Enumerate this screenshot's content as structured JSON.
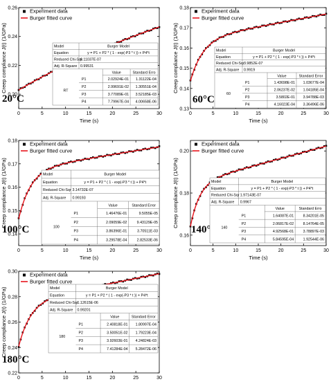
{
  "chart_data": [
    {
      "type": "scatter",
      "temperature": "20°C",
      "xlabel": "Time (s)",
      "ylabel": "Creep compliance J(t) (1/GPa)",
      "xlim": [
        0,
        30
      ],
      "ylim": [
        0.19,
        0.26
      ],
      "xticks": [
        "0",
        "5",
        "10",
        "15",
        "20",
        "25",
        "30"
      ],
      "yticks": [
        "0.20",
        "0.22",
        "0.24",
        "0.26"
      ],
      "legend": [
        "Experiment data",
        "Burger fitted curve"
      ],
      "fit": {
        "p1": 0.202924,
        "p2": 0.0299691,
        "p3": 0.0377089,
        "p4": 0.000779967
      },
      "table": {
        "model_label": "Model",
        "model_value": "Burger Model",
        "equation_label": "Equation",
        "equation": "y = P1 + P2 * ( 1 - exp(-P3 * t )) + P4*t",
        "chisqr_label": "Reduced Chi-Sqr",
        "chisqr": "6.11037E-07",
        "rsq_label": "Adj. R-Square",
        "rsq": "0.99531",
        "value_header": "Value",
        "error_header": "Standard Erro",
        "group": "RT",
        "params": [
          {
            "name": "P1",
            "value": "2.02924E-01",
            "error": "1.31122E-04"
          },
          {
            "name": "P2",
            "value": "2.99691E-02",
            "error": "1.30551E-04"
          },
          {
            "name": "P3",
            "value": "3.77089E-01",
            "error": "3.52185E-03"
          },
          {
            "name": "P4",
            "value": "7.79967E-04",
            "error": "4.00658E-06"
          }
        ]
      }
    },
    {
      "type": "scatter",
      "temperature": "60°C",
      "xlabel": "Time (s)",
      "ylabel": "Creep compliance J(t) (1/GPa)",
      "xlim": [
        0,
        30
      ],
      "ylim": [
        0.13,
        0.18
      ],
      "xticks": [
        "0",
        "5",
        "10",
        "15",
        "20",
        "25",
        "30"
      ],
      "yticks": [
        "0.13",
        "0.14",
        "0.15",
        "0.16",
        "0.17",
        "0.18"
      ],
      "legend": [
        "Experiment data",
        "Burger fitted curve"
      ],
      "fit": {
        "p1": 0.143698,
        "p2": 0.0206237,
        "p3": 0.35802,
        "p4": 0.000416023
      },
      "table": {
        "model_label": "Model",
        "model_value": "Burger Model",
        "equation_label": "Equation",
        "equation": "y = P1 + P2 * ( 1 - exp(-P3 * t )) + P4*t",
        "chisqr_label": "Reduced Chi-Sqr",
        "chisqr": "3.9852E-07",
        "rsq_label": "Adj. R-Square",
        "rsq": "0.9919",
        "value_header": "Value",
        "error_header": "Standard Error",
        "group": "60",
        "params": [
          {
            "name": "P1",
            "value": "1.43698E-01",
            "error": "1.03677E-04"
          },
          {
            "name": "P2",
            "value": "2.06237E-02",
            "error": "1.04185E-04"
          },
          {
            "name": "P3",
            "value": "3.5802E-01",
            "error": "3.94788E-03"
          },
          {
            "name": "P4",
            "value": "4.16023E-04",
            "error": "3.36496E-06"
          }
        ]
      }
    },
    {
      "type": "scatter",
      "temperature": "100°C",
      "xlabel": "Time (s)",
      "ylabel": "Creep compliance J(t) (1/GPa)",
      "xlim": [
        0,
        30
      ],
      "ylim": [
        0.135,
        0.18
      ],
      "xticks": [
        "0",
        "5",
        "10",
        "15",
        "20",
        "25",
        "30"
      ],
      "yticks": [
        "0.14",
        "0.15",
        "0.16",
        "0.17",
        "0.18"
      ],
      "legend": [
        "Experiment data",
        "Burger fitted curve"
      ],
      "fit": {
        "p1": 0.146476,
        "p2": 0.0209059,
        "p3": 0.386396,
        "p4": 0.000329578
      },
      "table": {
        "model_label": "Model",
        "model_value": "Burger Model",
        "equation_label": "Equation",
        "equation": "y = P1 + P2 * ( 1 - exp(-P3 * t )) + P4*t",
        "chisqr_label": "Reduced Chi-Sqr",
        "chisqr": "3.14732E-07",
        "rsq_label": "Adj. R-Square",
        "rsq": "0.99193",
        "value_header": "Value",
        "error_header": "Standard Error",
        "group": "100",
        "params": [
          {
            "name": "P1",
            "value": "1.46476E-01",
            "error": "9.5055E-05"
          },
          {
            "name": "P2",
            "value": "2.09059E-02",
            "error": "9.43129E-05"
          },
          {
            "name": "P3",
            "value": "3.86396E-01",
            "error": "3.70511E-03"
          },
          {
            "name": "P4",
            "value": "3.29578E-04",
            "error": "2.82533E-06"
          }
        ]
      }
    },
    {
      "type": "scatter",
      "temperature": "140°C",
      "xlabel": "Time (s)",
      "ylabel": "Creep compliance J(t) (1/GPa)",
      "xlim": [
        0,
        30
      ],
      "ylim": [
        0.155,
        0.205
      ],
      "xticks": [
        "0",
        "5",
        "10",
        "15",
        "20",
        "25",
        "30"
      ],
      "yticks": [
        "0.16",
        "0.18",
        "0.20"
      ],
      "legend": [
        "Experiment data",
        "Burger fitted curve"
      ],
      "fit": {
        "p1": 0.164087,
        "p2": 0.0206817,
        "p3": 0.492568,
        "p4": 0.000584595
      },
      "table": {
        "model_label": "Model",
        "model_value": "Burger Model",
        "equation_label": "Equation",
        "equation": "y = P1 + P2 * ( 1 - exp(-P3 * t )) + P4*t",
        "chisqr_label": "Reduced Chi-Sqr",
        "chisqr": "1.97143E-07",
        "rsq_label": "Adj. R-Square",
        "rsq": "0.9967",
        "value_header": "Value",
        "error_header": "Standard Erro",
        "group": "140",
        "params": [
          {
            "name": "P1",
            "value": "1.64087E-01",
            "error": "8.34201E-05"
          },
          {
            "name": "P2",
            "value": "2.06817E-02",
            "error": "8.14764E-05"
          },
          {
            "name": "P3",
            "value": "4.92568E-01",
            "error": "3.78897E-03"
          },
          {
            "name": "P4",
            "value": "5.84595E-04",
            "error": "1.92544E-06"
          }
        ]
      }
    },
    {
      "type": "scatter",
      "temperature": "180°C",
      "xlabel": "Time (s)",
      "ylabel": "Creep compliance J(t) (1/GPa)",
      "xlim": [
        0,
        30
      ],
      "ylim": [
        0.22,
        0.3
      ],
      "xticks": [
        "0",
        "5",
        "10",
        "15",
        "20",
        "25",
        "30"
      ],
      "yticks": [
        "0.22",
        "0.24",
        "0.26",
        "0.28",
        "0.30"
      ],
      "legend": [
        "Experiment data",
        "Burger fitted curve"
      ],
      "fit": {
        "p1": 0.240818,
        "p2": 0.0350051,
        "p3": 0.392603,
        "p4": 0.000741284
      },
      "table": {
        "model_label": "Model",
        "model_value": "Burger Model",
        "equation_label": "Equation",
        "equation": "y = P1 + P2 * ( 1 - exp(-P3 * t )) + P4*t",
        "chisqr_label": "Reduced Chi-Sqr",
        "chisqr": "1.12615E-06",
        "rsq_label": "Adj. R-Square",
        "rsq": "0.99201",
        "value_header": "Value",
        "error_header": "Standard Error",
        "group": "180",
        "params": [
          {
            "name": "P1",
            "value": "2.40818E-01",
            "error": "1.80997E-04"
          },
          {
            "name": "P2",
            "value": "3.50051E-02",
            "error": "1.79223E-04"
          },
          {
            "name": "P3",
            "value": "3.92603E-01",
            "error": "4.24824E-03"
          },
          {
            "name": "P4",
            "value": "7.41284E-04",
            "error": "5.28472E-06"
          }
        ]
      }
    }
  ],
  "colors": {
    "data": "#000000",
    "fit": "#e8141c",
    "axis": "#000000"
  },
  "marker_shape": "square"
}
